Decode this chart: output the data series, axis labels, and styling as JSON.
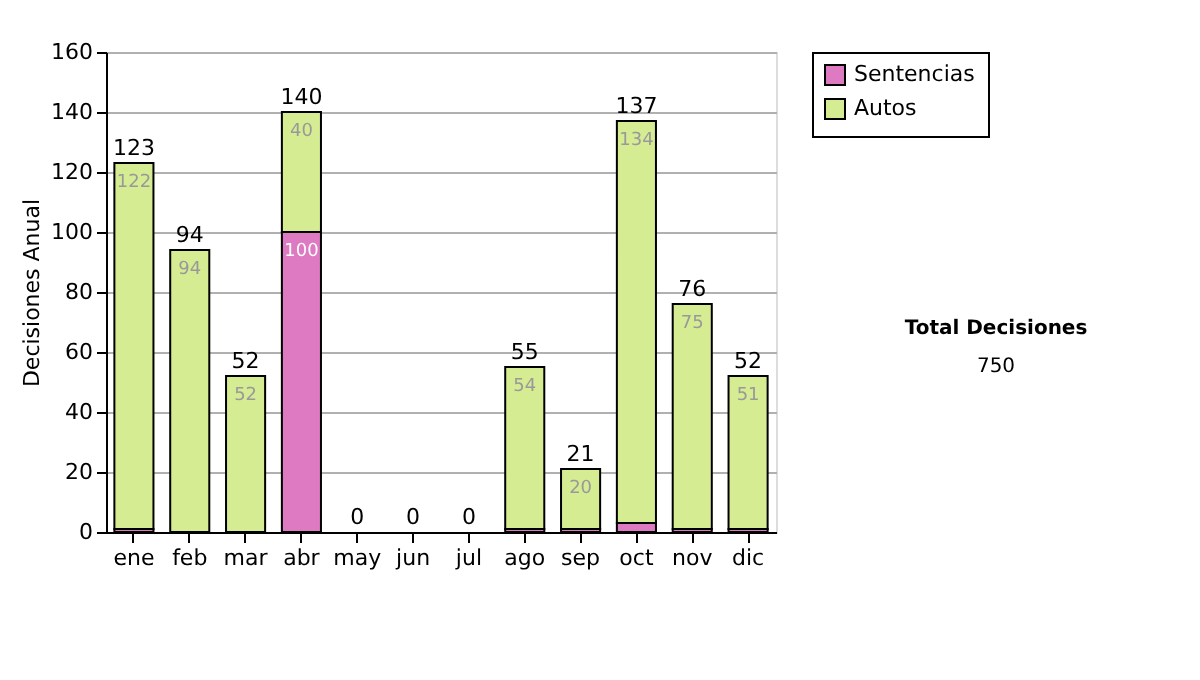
{
  "chart_data": {
    "type": "bar",
    "stacked": true,
    "ylabel": "Decisiones Anual",
    "categories": [
      "ene",
      "feb",
      "mar",
      "abr",
      "may",
      "jun",
      "jul",
      "ago",
      "sep",
      "oct",
      "nov",
      "dic"
    ],
    "series": [
      {
        "name": "Sentencias",
        "color": "#dd7ac2",
        "values": [
          1,
          0,
          0,
          100,
          0,
          0,
          0,
          1,
          1,
          3,
          1,
          1
        ],
        "value_labels": [
          null,
          null,
          null,
          "100",
          null,
          null,
          null,
          null,
          null,
          null,
          null,
          null
        ]
      },
      {
        "name": "Autos",
        "color": "#d6ec92",
        "values": [
          122,
          94,
          52,
          40,
          0,
          0,
          0,
          54,
          20,
          134,
          75,
          51
        ],
        "value_labels": [
          "122",
          "94",
          "52",
          "40",
          null,
          null,
          null,
          "54",
          "20",
          "134",
          "75",
          "51"
        ]
      }
    ],
    "totals": [
      "123",
      "94",
      "52",
      "140",
      "0",
      "0",
      "0",
      "55",
      "21",
      "137",
      "76",
      "52"
    ],
    "ylim": [
      0,
      160
    ],
    "yticks": [
      0,
      20,
      40,
      60,
      80,
      100,
      120,
      140,
      160
    ],
    "grid": "y",
    "legend": "right",
    "annotations": [
      "Total Decisiones",
      "750"
    ]
  }
}
